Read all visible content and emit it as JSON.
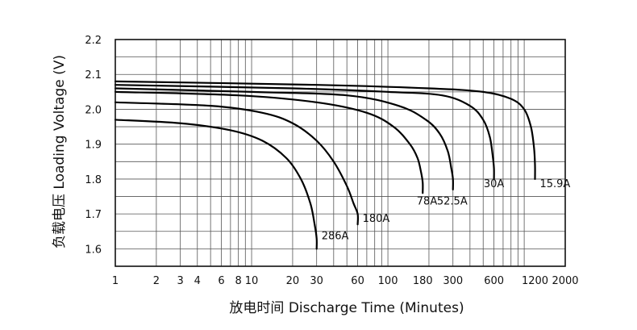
{
  "chart_data": {
    "type": "line",
    "xlabel": "放电时间 Discharge Time (Minutes)",
    "ylabel": "负载电压 Loading Voltage (V)",
    "x_scale": "log",
    "xlim": [
      1,
      2000
    ],
    "ylim": [
      1.55,
      2.2
    ],
    "x_ticks": [
      {
        "value": 1,
        "label": "1"
      },
      {
        "value": 2,
        "label": "2"
      },
      {
        "value": 3,
        "label": "3"
      },
      {
        "value": 4,
        "label": "4"
      },
      {
        "value": 6,
        "label": "6"
      },
      {
        "value": 8,
        "label": "8"
      },
      {
        "value": 10,
        "label": "10"
      },
      {
        "value": 20,
        "label": "20"
      },
      {
        "value": 30,
        "label": "30"
      },
      {
        "value": 60,
        "label": "60"
      },
      {
        "value": 100,
        "label": "100"
      },
      {
        "value": 180,
        "label": "180"
      },
      {
        "value": 300,
        "label": "300"
      },
      {
        "value": 600,
        "label": "600"
      },
      {
        "value": 1200,
        "label": "1200"
      },
      {
        "value": 2000,
        "label": "2000"
      }
    ],
    "x_gridlines": [
      1,
      2,
      3,
      4,
      5,
      6,
      7,
      8,
      9,
      10,
      20,
      30,
      40,
      50,
      60,
      70,
      80,
      90,
      100,
      200,
      300,
      400,
      500,
      600,
      700,
      800,
      900,
      1000,
      2000
    ],
    "y_ticks": [
      {
        "value": 1.6,
        "label": "1.6"
      },
      {
        "value": 1.7,
        "label": "1.7"
      },
      {
        "value": 1.8,
        "label": "1.8"
      },
      {
        "value": 1.9,
        "label": "1.9"
      },
      {
        "value": 2.0,
        "label": "2.0"
      },
      {
        "value": 2.1,
        "label": "2.1"
      },
      {
        "value": 2.2,
        "label": "2.2"
      }
    ],
    "grid": true,
    "series": [
      {
        "name": "286A",
        "x": [
          1,
          3,
          7,
          12,
          18,
          23,
          27,
          29,
          30,
          30
        ],
        "y": [
          1.97,
          1.96,
          1.94,
          1.91,
          1.86,
          1.8,
          1.73,
          1.67,
          1.63,
          1.6
        ]
      },
      {
        "name": "180A",
        "x": [
          1,
          5,
          12,
          20,
          30,
          40,
          50,
          56,
          60,
          60
        ],
        "y": [
          2.02,
          2.01,
          1.99,
          1.96,
          1.91,
          1.85,
          1.78,
          1.73,
          1.7,
          1.67
        ]
      },
      {
        "name": "78A",
        "x": [
          1,
          8,
          30,
          70,
          110,
          145,
          165,
          175,
          180,
          180
        ],
        "y": [
          2.05,
          2.04,
          2.02,
          1.99,
          1.95,
          1.9,
          1.86,
          1.82,
          1.79,
          1.76
        ]
      },
      {
        "name": "52.5A",
        "x": [
          1,
          10,
          50,
          120,
          190,
          240,
          275,
          292,
          300,
          300
        ],
        "y": [
          2.06,
          2.05,
          2.04,
          2.01,
          1.97,
          1.93,
          1.88,
          1.83,
          1.8,
          1.77
        ]
      },
      {
        "name": "30A",
        "x": [
          1,
          20,
          100,
          250,
          400,
          500,
          560,
          590,
          600,
          600
        ],
        "y": [
          2.07,
          2.06,
          2.05,
          2.04,
          2.01,
          1.97,
          1.92,
          1.86,
          1.83,
          1.8
        ]
      },
      {
        "name": "15.9A",
        "x": [
          1,
          30,
          200,
          500,
          800,
          1000,
          1120,
          1180,
          1200,
          1200
        ],
        "y": [
          2.08,
          2.07,
          2.06,
          2.05,
          2.03,
          2.0,
          1.95,
          1.89,
          1.84,
          1.8
        ]
      }
    ],
    "curve_labels": [
      {
        "text": "286A",
        "x": 30,
        "y": 1.62,
        "anchor": "start"
      },
      {
        "text": "180A",
        "x": 60,
        "y": 1.67,
        "anchor": "start"
      },
      {
        "text": "78A",
        "x": 180,
        "y": 1.72,
        "anchor": "end"
      },
      {
        "text": "52.5A",
        "x": 300,
        "y": 1.72,
        "anchor": "end"
      },
      {
        "text": "30A",
        "x": 600,
        "y": 1.77,
        "anchor": "middle"
      },
      {
        "text": "15.9A",
        "x": 1200,
        "y": 1.77,
        "anchor": "start"
      }
    ]
  }
}
